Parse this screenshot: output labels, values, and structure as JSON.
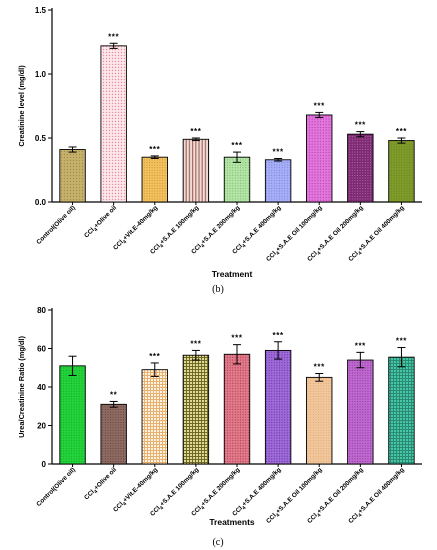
{
  "chart_data": [
    {
      "type": "bar",
      "panel_label": "(b)",
      "ylabel": "Creatinine level (mg/dl)",
      "xlabel": "Treatment",
      "ylim": [
        0,
        1.5
      ],
      "yticks": [
        "0.0",
        "0.5",
        "1.0",
        "1.5"
      ],
      "categories": [
        "Control(Olive oil)",
        "CCl4+Olive oil",
        "CCl4+Vit.E-40mg/kg",
        "CCl4+S.A.E 100mg/kg",
        "CCl4+S.A.E 200mg/kg",
        "CCl4+S.A.E 400mg/kg",
        "CCl4+S.A.E Oil 100mg/kg",
        "CCl4+S.A.E Oil 200mg/kg",
        "CCl4+S.A.E Oil 400mg/kg"
      ],
      "values": [
        0.41,
        1.22,
        0.35,
        0.49,
        0.35,
        0.33,
        0.68,
        0.53,
        0.48
      ],
      "errors": [
        0.02,
        0.02,
        0.01,
        0.01,
        0.04,
        0.01,
        0.02,
        0.02,
        0.02
      ],
      "significance": [
        "",
        "***",
        "***",
        "***",
        "***",
        "***",
        "***",
        "***",
        "***"
      ],
      "colors": [
        "#c5b06b",
        "#f6b9c4",
        "#f4c160",
        "#d9a9a0",
        "#b4e5a7",
        "#a6aef5",
        "#e276dc",
        "#7e2b74",
        "#7f9b2a"
      ]
    },
    {
      "type": "bar",
      "panel_label": "(c)",
      "ylabel": "Urea/Creatinine Ratio (mg/dl)",
      "xlabel": "Treatments",
      "ylim": [
        0,
        80
      ],
      "yticks": [
        "0",
        "20",
        "40",
        "60",
        "80"
      ],
      "categories": [
        "Control(Olive oil)",
        "CCl4+Olive oil",
        "CCl4+Vit.E-40mg/kg",
        "CCl4+S.A.E 100mg/kg",
        "CCl4+S.A.E 200mg/kg",
        "CCl4+S.A.E 400mg/kg",
        "CCl4+S.A.E Oil 100mg/kg",
        "CCl4+S.A.E Oil 200mg/kg",
        "CCl4+S.A.E Oil 400mg/kg"
      ],
      "values": [
        51,
        31,
        49,
        56.5,
        57,
        59,
        45,
        54,
        55.5
      ],
      "errors": [
        5,
        1.5,
        3.5,
        2.5,
        5,
        4.5,
        2,
        4,
        5
      ],
      "significance": [
        "",
        "**",
        "***",
        "***",
        "***",
        "***",
        "***",
        "***",
        "***"
      ],
      "colors": [
        "#22d33a",
        "#8e6a62",
        "#ffd9a8",
        "#c9c267",
        "#e07c8c",
        "#9e6bd8",
        "#f2c79c",
        "#c06ad0",
        "#45c7a7"
      ]
    }
  ]
}
